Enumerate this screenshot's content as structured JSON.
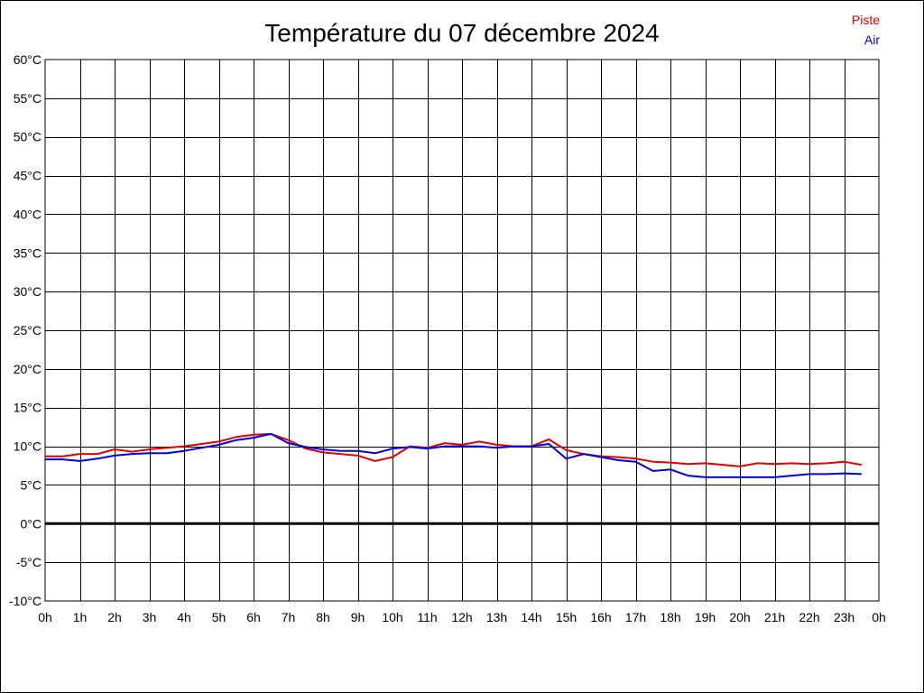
{
  "chart_data": {
    "type": "line",
    "title": "Température du 07 décembre 2024",
    "xlabel": "",
    "ylabel": "",
    "x_ticks": [
      "0h",
      "1h",
      "2h",
      "3h",
      "4h",
      "5h",
      "6h",
      "7h",
      "8h",
      "9h",
      "10h",
      "11h",
      "12h",
      "13h",
      "14h",
      "15h",
      "16h",
      "17h",
      "18h",
      "19h",
      "20h",
      "21h",
      "22h",
      "23h",
      "0h"
    ],
    "y_ticks": [
      "60°C",
      "55°C",
      "50°C",
      "45°C",
      "40°C",
      "35°C",
      "30°C",
      "25°C",
      "20°C",
      "15°C",
      "10°C",
      "5°C",
      "0°C",
      "-5°C",
      "-10°C"
    ],
    "xlim": [
      0,
      24
    ],
    "ylim": [
      -10,
      60
    ],
    "grid": true,
    "legend_position": "top-right",
    "x": [
      0,
      0.5,
      1,
      1.5,
      2,
      2.5,
      3,
      3.5,
      4,
      4.5,
      5,
      5.5,
      6,
      6.5,
      7,
      7.5,
      8,
      8.5,
      9,
      9.5,
      10,
      10.5,
      11,
      11.5,
      12,
      12.5,
      13,
      13.5,
      14,
      14.5,
      15,
      15.5,
      16,
      16.5,
      17,
      17.5,
      18,
      18.5,
      19,
      19.5,
      20,
      20.5,
      21,
      21.5,
      22,
      22.5,
      23,
      23.5
    ],
    "series": [
      {
        "name": "Piste",
        "color": "#e00000",
        "values": [
          8.7,
          8.7,
          9.0,
          9.0,
          9.6,
          9.3,
          9.6,
          9.8,
          10.0,
          10.3,
          10.6,
          11.2,
          11.5,
          11.6,
          10.8,
          9.7,
          9.2,
          9.0,
          8.8,
          8.1,
          8.6,
          10.0,
          9.8,
          10.4,
          10.2,
          10.6,
          10.2,
          10.0,
          10.0,
          10.9,
          9.5,
          9.0,
          8.7,
          8.6,
          8.4,
          8.0,
          7.9,
          7.7,
          7.8,
          7.6,
          7.4,
          7.8,
          7.7,
          7.8,
          7.7,
          7.8,
          8.0,
          7.6
        ]
      },
      {
        "name": "Air",
        "color": "#0000dd",
        "values": [
          8.3,
          8.3,
          8.1,
          8.4,
          8.8,
          9.0,
          9.1,
          9.1,
          9.4,
          9.8,
          10.2,
          10.8,
          11.1,
          11.6,
          10.4,
          9.9,
          9.6,
          9.4,
          9.4,
          9.1,
          9.7,
          9.9,
          9.7,
          10.0,
          10.0,
          10.0,
          9.8,
          10.0,
          10.0,
          10.3,
          8.4,
          9.0,
          8.6,
          8.2,
          8.0,
          6.8,
          7.0,
          6.2,
          6.0,
          6.0,
          6.0,
          6.0,
          6.0,
          6.2,
          6.4,
          6.4,
          6.5,
          6.4
        ]
      }
    ]
  }
}
